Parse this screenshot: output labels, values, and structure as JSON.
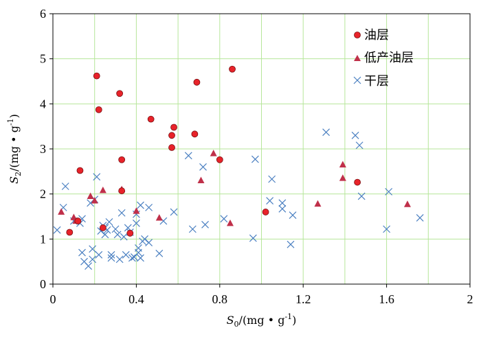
{
  "chart_data": {
    "type": "scatter",
    "title": "",
    "xlabel": {
      "base": "S",
      "sub": "0",
      "unit": "/(mg • g",
      "sup": "-1",
      "close": ")"
    },
    "ylabel": {
      "base": "S",
      "sub": "2",
      "unit": "/(mg • g",
      "sup": "-1",
      "close": ")"
    },
    "xlim": [
      0,
      2
    ],
    "ylim": [
      0,
      6
    ],
    "x_ticks": [
      "0",
      "0.4",
      "0.8",
      "1.2",
      "1.6",
      "2"
    ],
    "y_ticks": [
      "0",
      "1",
      "2",
      "3",
      "4",
      "5",
      "6"
    ],
    "grid": true,
    "legend_position": "top-right",
    "series": [
      {
        "name": "油层",
        "marker": "circle",
        "color": "#e8232a",
        "points": [
          [
            0.21,
            4.62
          ],
          [
            0.22,
            3.87
          ],
          [
            0.32,
            4.23
          ],
          [
            0.47,
            3.66
          ],
          [
            0.58,
            3.48
          ],
          [
            0.57,
            3.3
          ],
          [
            0.57,
            3.03
          ],
          [
            0.68,
            3.33
          ],
          [
            0.69,
            4.48
          ],
          [
            0.86,
            4.77
          ],
          [
            0.33,
            2.76
          ],
          [
            0.8,
            2.76
          ],
          [
            0.13,
            2.52
          ],
          [
            0.33,
            2.07
          ],
          [
            1.46,
            2.26
          ],
          [
            1.02,
            1.6
          ],
          [
            0.12,
            1.4
          ],
          [
            0.24,
            1.25
          ],
          [
            0.37,
            1.13
          ],
          [
            0.08,
            1.15
          ]
        ]
      },
      {
        "name": "低产油层",
        "marker": "triangle",
        "color": "#c0304a",
        "points": [
          [
            0.04,
            1.6
          ],
          [
            0.1,
            1.48
          ],
          [
            0.11,
            1.4
          ],
          [
            0.18,
            1.95
          ],
          [
            0.2,
            1.85
          ],
          [
            0.24,
            2.08
          ],
          [
            0.33,
            2.1
          ],
          [
            0.4,
            1.62
          ],
          [
            0.51,
            1.47
          ],
          [
            0.71,
            2.3
          ],
          [
            0.77,
            2.9
          ],
          [
            0.85,
            1.35
          ],
          [
            1.27,
            1.78
          ],
          [
            1.39,
            2.65
          ],
          [
            1.39,
            2.35
          ],
          [
            1.7,
            1.77
          ]
        ]
      },
      {
        "name": "干层",
        "marker": "x",
        "color": "#4a7fc1",
        "points": [
          [
            0.02,
            1.2
          ],
          [
            0.05,
            1.7
          ],
          [
            0.06,
            2.17
          ],
          [
            0.1,
            1.4
          ],
          [
            0.13,
            1.35
          ],
          [
            0.14,
            1.45
          ],
          [
            0.14,
            0.7
          ],
          [
            0.15,
            0.5
          ],
          [
            0.17,
            0.4
          ],
          [
            0.18,
            1.8
          ],
          [
            0.19,
            0.78
          ],
          [
            0.19,
            0.55
          ],
          [
            0.2,
            1.88
          ],
          [
            0.21,
            2.38
          ],
          [
            0.22,
            0.65
          ],
          [
            0.23,
            1.18
          ],
          [
            0.24,
            1.3
          ],
          [
            0.25,
            1.25
          ],
          [
            0.25,
            1.1
          ],
          [
            0.26,
            1.2
          ],
          [
            0.27,
            1.38
          ],
          [
            0.28,
            0.65
          ],
          [
            0.28,
            0.58
          ],
          [
            0.3,
            1.22
          ],
          [
            0.31,
            1.1
          ],
          [
            0.32,
            0.55
          ],
          [
            0.33,
            1.58
          ],
          [
            0.34,
            1.05
          ],
          [
            0.35,
            0.65
          ],
          [
            0.36,
            1.25
          ],
          [
            0.37,
            1.15
          ],
          [
            0.38,
            0.58
          ],
          [
            0.39,
            0.6
          ],
          [
            0.4,
            1.55
          ],
          [
            0.4,
            1.35
          ],
          [
            0.41,
            0.8
          ],
          [
            0.41,
            0.7
          ],
          [
            0.42,
            0.58
          ],
          [
            0.42,
            1.75
          ],
          [
            0.43,
            0.95
          ],
          [
            0.44,
            1.0
          ],
          [
            0.46,
            1.7
          ],
          [
            0.46,
            0.92
          ],
          [
            0.51,
            0.68
          ],
          [
            0.53,
            1.4
          ],
          [
            0.58,
            1.6
          ],
          [
            0.65,
            2.85
          ],
          [
            0.67,
            1.22
          ],
          [
            0.72,
            2.6
          ],
          [
            0.73,
            1.32
          ],
          [
            0.82,
            1.45
          ],
          [
            0.96,
            1.02
          ],
          [
            0.97,
            2.77
          ],
          [
            1.04,
            1.85
          ],
          [
            1.05,
            2.33
          ],
          [
            1.1,
            1.8
          ],
          [
            1.1,
            1.67
          ],
          [
            1.14,
            0.88
          ],
          [
            1.15,
            1.53
          ],
          [
            1.31,
            3.37
          ],
          [
            1.45,
            3.3
          ],
          [
            1.47,
            3.08
          ],
          [
            1.48,
            1.95
          ],
          [
            1.6,
            1.22
          ],
          [
            1.61,
            2.05
          ],
          [
            1.76,
            1.47
          ]
        ]
      }
    ]
  }
}
